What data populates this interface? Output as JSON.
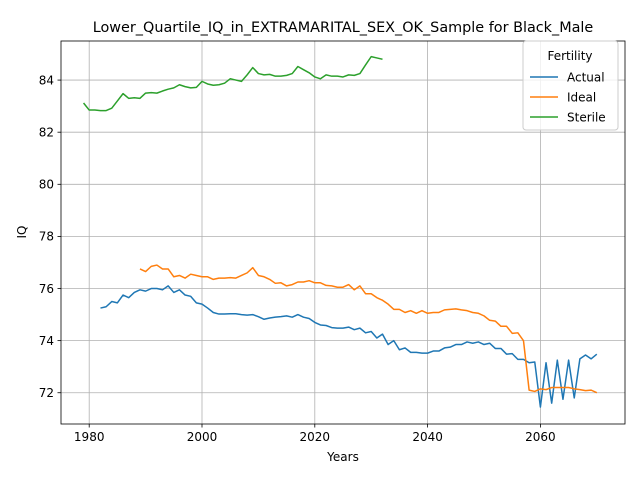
{
  "chart_data": {
    "type": "line",
    "title": "Lower_Quartile_IQ_in_EXTRAMARITAL_SEX_OK_Sample for Black_Male",
    "xlabel": "Years",
    "ylabel": "IQ",
    "xlim": [
      1975,
      2075
    ],
    "ylim": [
      70.8,
      85.5
    ],
    "xticks": [
      1980,
      2000,
      2020,
      2040,
      2060
    ],
    "yticks": [
      72,
      74,
      76,
      78,
      80,
      82,
      84
    ],
    "grid": true,
    "legend": {
      "title": "Fertility",
      "placement": "top-right"
    },
    "series": [
      {
        "name": "Actual",
        "color": "#1f77b4",
        "x": [
          1982,
          1983,
          1984,
          1985,
          1986,
          1987,
          1988,
          1989,
          1990,
          1991,
          1992,
          1993,
          1994,
          1995,
          1996,
          1997,
          1998,
          1999,
          2000,
          2001,
          2002,
          2003,
          2004,
          2005,
          2006,
          2007,
          2008,
          2009,
          2010,
          2011,
          2012,
          2013,
          2014,
          2015,
          2016,
          2017,
          2018,
          2019,
          2020,
          2021,
          2022,
          2023,
          2024,
          2025,
          2026,
          2027,
          2028,
          2029,
          2030,
          2031,
          2032,
          2033,
          2034,
          2035,
          2036,
          2037,
          2038,
          2039,
          2040,
          2041,
          2042,
          2043,
          2044,
          2045,
          2046,
          2047,
          2048,
          2049,
          2050,
          2051,
          2052,
          2053,
          2054,
          2055,
          2056,
          2057,
          2058,
          2059,
          2060,
          2061,
          2062,
          2063,
          2064,
          2065,
          2066,
          2067,
          2068,
          2069,
          2070
        ],
        "y": [
          75.25,
          75.3,
          75.5,
          75.45,
          75.75,
          75.65,
          75.85,
          75.95,
          75.9,
          76.0,
          76.0,
          75.95,
          76.1,
          75.85,
          75.95,
          75.75,
          75.7,
          75.45,
          75.4,
          75.25,
          75.08,
          75.02,
          75.02,
          75.03,
          75.03,
          75.0,
          74.98,
          75.0,
          74.92,
          74.82,
          74.87,
          74.9,
          74.92,
          74.95,
          74.9,
          75.0,
          74.9,
          74.85,
          74.7,
          74.6,
          74.58,
          74.5,
          74.48,
          74.48,
          74.52,
          74.42,
          74.48,
          74.3,
          74.35,
          74.1,
          74.25,
          73.85,
          74.0,
          73.65,
          73.72,
          73.55,
          73.55,
          73.52,
          73.52,
          73.6,
          73.6,
          73.72,
          73.75,
          73.85,
          73.85,
          73.95,
          73.9,
          73.95,
          73.85,
          73.9,
          73.7,
          73.7,
          73.48,
          73.5,
          73.28,
          73.28,
          73.15,
          73.18,
          71.45,
          73.15,
          71.6,
          73.25,
          71.75,
          73.25,
          71.8,
          73.3,
          73.45,
          73.3,
          73.48
        ]
      },
      {
        "name": "Ideal",
        "color": "#ff7f0e",
        "x": [
          1989,
          1990,
          1991,
          1992,
          1993,
          1994,
          1995,
          1996,
          1997,
          1998,
          1999,
          2000,
          2001,
          2002,
          2003,
          2004,
          2005,
          2006,
          2007,
          2008,
          2009,
          2010,
          2011,
          2012,
          2013,
          2014,
          2015,
          2016,
          2017,
          2018,
          2019,
          2020,
          2021,
          2022,
          2023,
          2024,
          2025,
          2026,
          2027,
          2028,
          2029,
          2030,
          2031,
          2032,
          2033,
          2034,
          2035,
          2036,
          2037,
          2038,
          2039,
          2040,
          2041,
          2042,
          2043,
          2044,
          2045,
          2046,
          2047,
          2048,
          2049,
          2050,
          2051,
          2052,
          2053,
          2054,
          2055,
          2056,
          2057,
          2058,
          2059,
          2060,
          2061,
          2062,
          2063,
          2064,
          2065,
          2066,
          2067,
          2068,
          2069,
          2070
        ],
        "y": [
          76.75,
          76.65,
          76.85,
          76.9,
          76.75,
          76.75,
          76.45,
          76.5,
          76.4,
          76.55,
          76.5,
          76.45,
          76.45,
          76.35,
          76.4,
          76.4,
          76.42,
          76.4,
          76.5,
          76.6,
          76.8,
          76.5,
          76.45,
          76.35,
          76.2,
          76.22,
          76.1,
          76.15,
          76.25,
          76.25,
          76.3,
          76.22,
          76.22,
          76.12,
          76.1,
          76.05,
          76.05,
          76.15,
          75.95,
          76.1,
          75.8,
          75.8,
          75.65,
          75.55,
          75.4,
          75.2,
          75.2,
          75.08,
          75.15,
          75.05,
          75.15,
          75.05,
          75.08,
          75.08,
          75.18,
          75.2,
          75.22,
          75.18,
          75.15,
          75.08,
          75.05,
          74.95,
          74.78,
          74.75,
          74.55,
          74.55,
          74.28,
          74.3,
          74.0,
          72.1,
          72.05,
          72.15,
          72.12,
          72.2,
          72.2,
          72.2,
          72.2,
          72.15,
          72.12,
          72.08,
          72.1,
          72.0
        ]
      },
      {
        "name": "Sterile",
        "color": "#2ca02c",
        "x": [
          1979,
          1980,
          1981,
          1982,
          1983,
          1984,
          1985,
          1986,
          1987,
          1988,
          1989,
          1990,
          1991,
          1992,
          1993,
          1994,
          1995,
          1996,
          1997,
          1998,
          1999,
          2000,
          2001,
          2002,
          2003,
          2004,
          2005,
          2006,
          2007,
          2008,
          2009,
          2010,
          2011,
          2012,
          2013,
          2014,
          2015,
          2016,
          2017,
          2018,
          2019,
          2020,
          2021,
          2022,
          2023,
          2024,
          2025,
          2026,
          2027,
          2028,
          2029,
          2030,
          2031,
          2032
        ],
        "y": [
          83.12,
          82.85,
          82.85,
          82.83,
          82.83,
          82.92,
          83.2,
          83.48,
          83.3,
          83.32,
          83.3,
          83.5,
          83.52,
          83.5,
          83.58,
          83.65,
          83.7,
          83.82,
          83.75,
          83.7,
          83.72,
          83.95,
          83.85,
          83.8,
          83.82,
          83.88,
          84.05,
          84.0,
          83.95,
          84.2,
          84.48,
          84.25,
          84.2,
          84.22,
          84.15,
          84.15,
          84.18,
          84.25,
          84.52,
          84.4,
          84.28,
          84.12,
          84.05,
          84.2,
          84.15,
          84.15,
          84.12,
          84.2,
          84.18,
          84.25,
          84.58,
          84.9,
          84.85,
          84.8
        ]
      }
    ]
  }
}
